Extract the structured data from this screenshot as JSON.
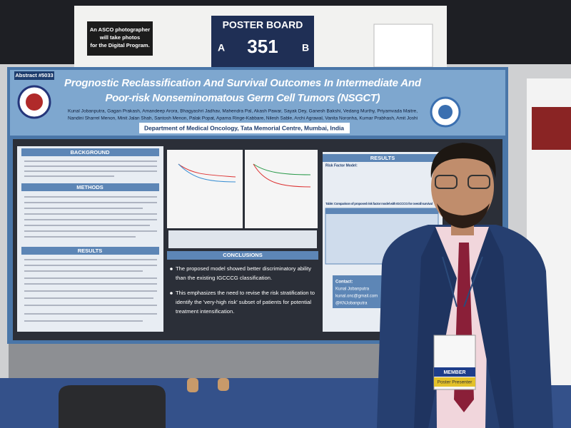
{
  "sign": {
    "photographer_note": [
      "An ASCO photographer",
      "will take photos",
      "for the Digital Program."
    ],
    "board_label": "POSTER BOARD",
    "side_a": "A",
    "board_number": "351",
    "side_b": "B"
  },
  "poster": {
    "abstract": "Abstract #5033",
    "title": [
      "Prognostic Reclassification And Survival Outcomes In Intermediate And",
      "Poor-risk Nonseminomatous Germ Cell Tumors (NSGCT)"
    ],
    "authors": [
      "Kunal Jobanputra, Gagan Prakash, Amandeep Arora, Bhagyashri Jadhav, Mahendra Pal, Akash Pawar, Sayak Dey, Ganesh Bakshi, Vedang Murthy, Priyamvada Maitre,",
      "Nandini Sharrel Menon, Minit Jalan Shah, Santosh Menon, Palak Popat, Aparna Ringe-Kabbare, Nilesh Sable, Archi Agrawal, Vanita Noronha, Kumar Prabhash, Amit Joshi"
    ],
    "department": "Department of Medical Oncology, Tata Memorial Centre, Mumbai, India",
    "background_heading": "BACKGROUND",
    "methods_heading": "METHODS",
    "results_heading": "RESULTS",
    "conclusions_heading": "CONCLUSIONS",
    "right_results_heading": "RESULTS",
    "risk_factor_model": "Risk Factor Model:",
    "table_caption": "Table: Comparison of proposed risk factor model with IGCCCG for overall survival",
    "conclusions": [
      "The proposed model showed better discriminatory ability",
      "than the existing IGCCCG classification.",
      "This emphasizes the need to revise the risk stratification to",
      "identify the 'very-high risk' subset of patients for potential",
      "treatment intensification."
    ],
    "contact": [
      "Contact:",
      "Kunal Jobanputra",
      "kunal.onc@gmail.com",
      "@KNJobanputra"
    ]
  },
  "badge": {
    "member": "MEMBER",
    "role": "Poster Presenter"
  }
}
